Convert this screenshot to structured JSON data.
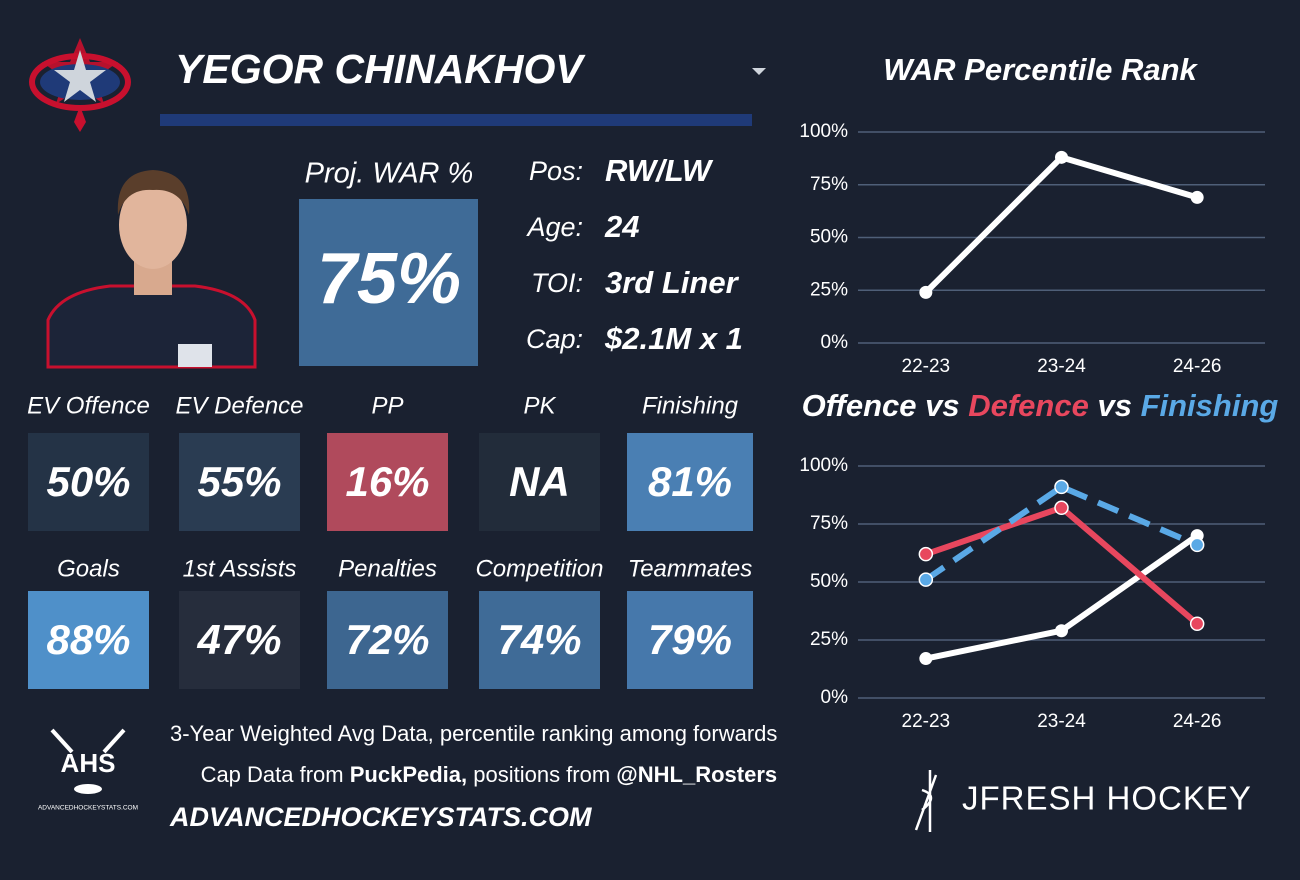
{
  "header": {
    "name": "YEGOR CHINAKHOV"
  },
  "projected": {
    "label": "Proj. WAR %",
    "value": "75%",
    "color": "#3f6b97"
  },
  "info": [
    {
      "label": "Pos:",
      "value": "RW/LW"
    },
    {
      "label": "Age:",
      "value": "24"
    },
    {
      "label": "TOI:",
      "value": "3rd Liner"
    },
    {
      "label": "Cap:",
      "value": "$2.1M x 1"
    }
  ],
  "tiles": [
    {
      "label": "EV Offence",
      "value": "50%",
      "color": "#243346"
    },
    {
      "label": "EV Defence",
      "value": "55%",
      "color": "#2a3c52"
    },
    {
      "label": "PP",
      "value": "16%",
      "color": "#b04a5c"
    },
    {
      "label": "PK",
      "value": "NA",
      "color": "#222c3a"
    },
    {
      "label": "Finishing",
      "value": "81%",
      "color": "#4a7fb3"
    },
    {
      "label": "Goals",
      "value": "88%",
      "color": "#4f90c9"
    },
    {
      "label": "1st Assists",
      "value": "47%",
      "color": "#262d3c"
    },
    {
      "label": "Penalties",
      "value": "72%",
      "color": "#3d6690"
    },
    {
      "label": "Competition",
      "value": "74%",
      "color": "#3f6b97"
    },
    {
      "label": "Teammates",
      "value": "79%",
      "color": "#4678ab"
    }
  ],
  "footer": {
    "line1": "3-Year Weighted Avg Data, percentile ranking among forwards",
    "line2": [
      "Cap Data from ",
      "PuckPedia,",
      " positions from ",
      "@NHL_Rosters"
    ],
    "site": "ADVANCEDHOCKEYSTATS.COM",
    "logo": "AHS",
    "logo_small": "ADVANCEDHOCKEYSTATS.COM",
    "brand": "JFRESH HOCKEY"
  },
  "chart_data": [
    {
      "type": "line",
      "title": "WAR Percentile Rank",
      "categories": [
        "22-23",
        "23-24",
        "24-26"
      ],
      "values": [
        24,
        88,
        69
      ],
      "color": "#ffffff",
      "ylim": [
        0,
        100
      ],
      "yticks": [
        {
          "value": 0,
          "label": "0%"
        },
        {
          "value": 25,
          "label": "25%"
        },
        {
          "value": 50,
          "label": "50%"
        },
        {
          "value": 75,
          "label": "75%"
        },
        {
          "value": 100,
          "label": "100%"
        }
      ],
      "grid": true
    },
    {
      "type": "line",
      "title_separator": "vs",
      "categories": [
        "22-23",
        "23-24",
        "24-26"
      ],
      "series": [
        {
          "name": "Offence",
          "color": "#ffffff",
          "values": [
            17,
            29,
            70
          ]
        },
        {
          "name": "Defence",
          "color": "#e8475e",
          "values": [
            62,
            82,
            32
          ]
        },
        {
          "name": "Finishing",
          "color": "#5aa9e6",
          "values": [
            51,
            91,
            66
          ],
          "dashed": true
        }
      ],
      "ylim": [
        0,
        100
      ],
      "yticks": [
        {
          "value": 0,
          "label": "0%"
        },
        {
          "value": 25,
          "label": "25%"
        },
        {
          "value": 50,
          "label": "50%"
        },
        {
          "value": 75,
          "label": "75%"
        },
        {
          "value": 100,
          "label": "100%"
        }
      ],
      "grid": true
    }
  ]
}
